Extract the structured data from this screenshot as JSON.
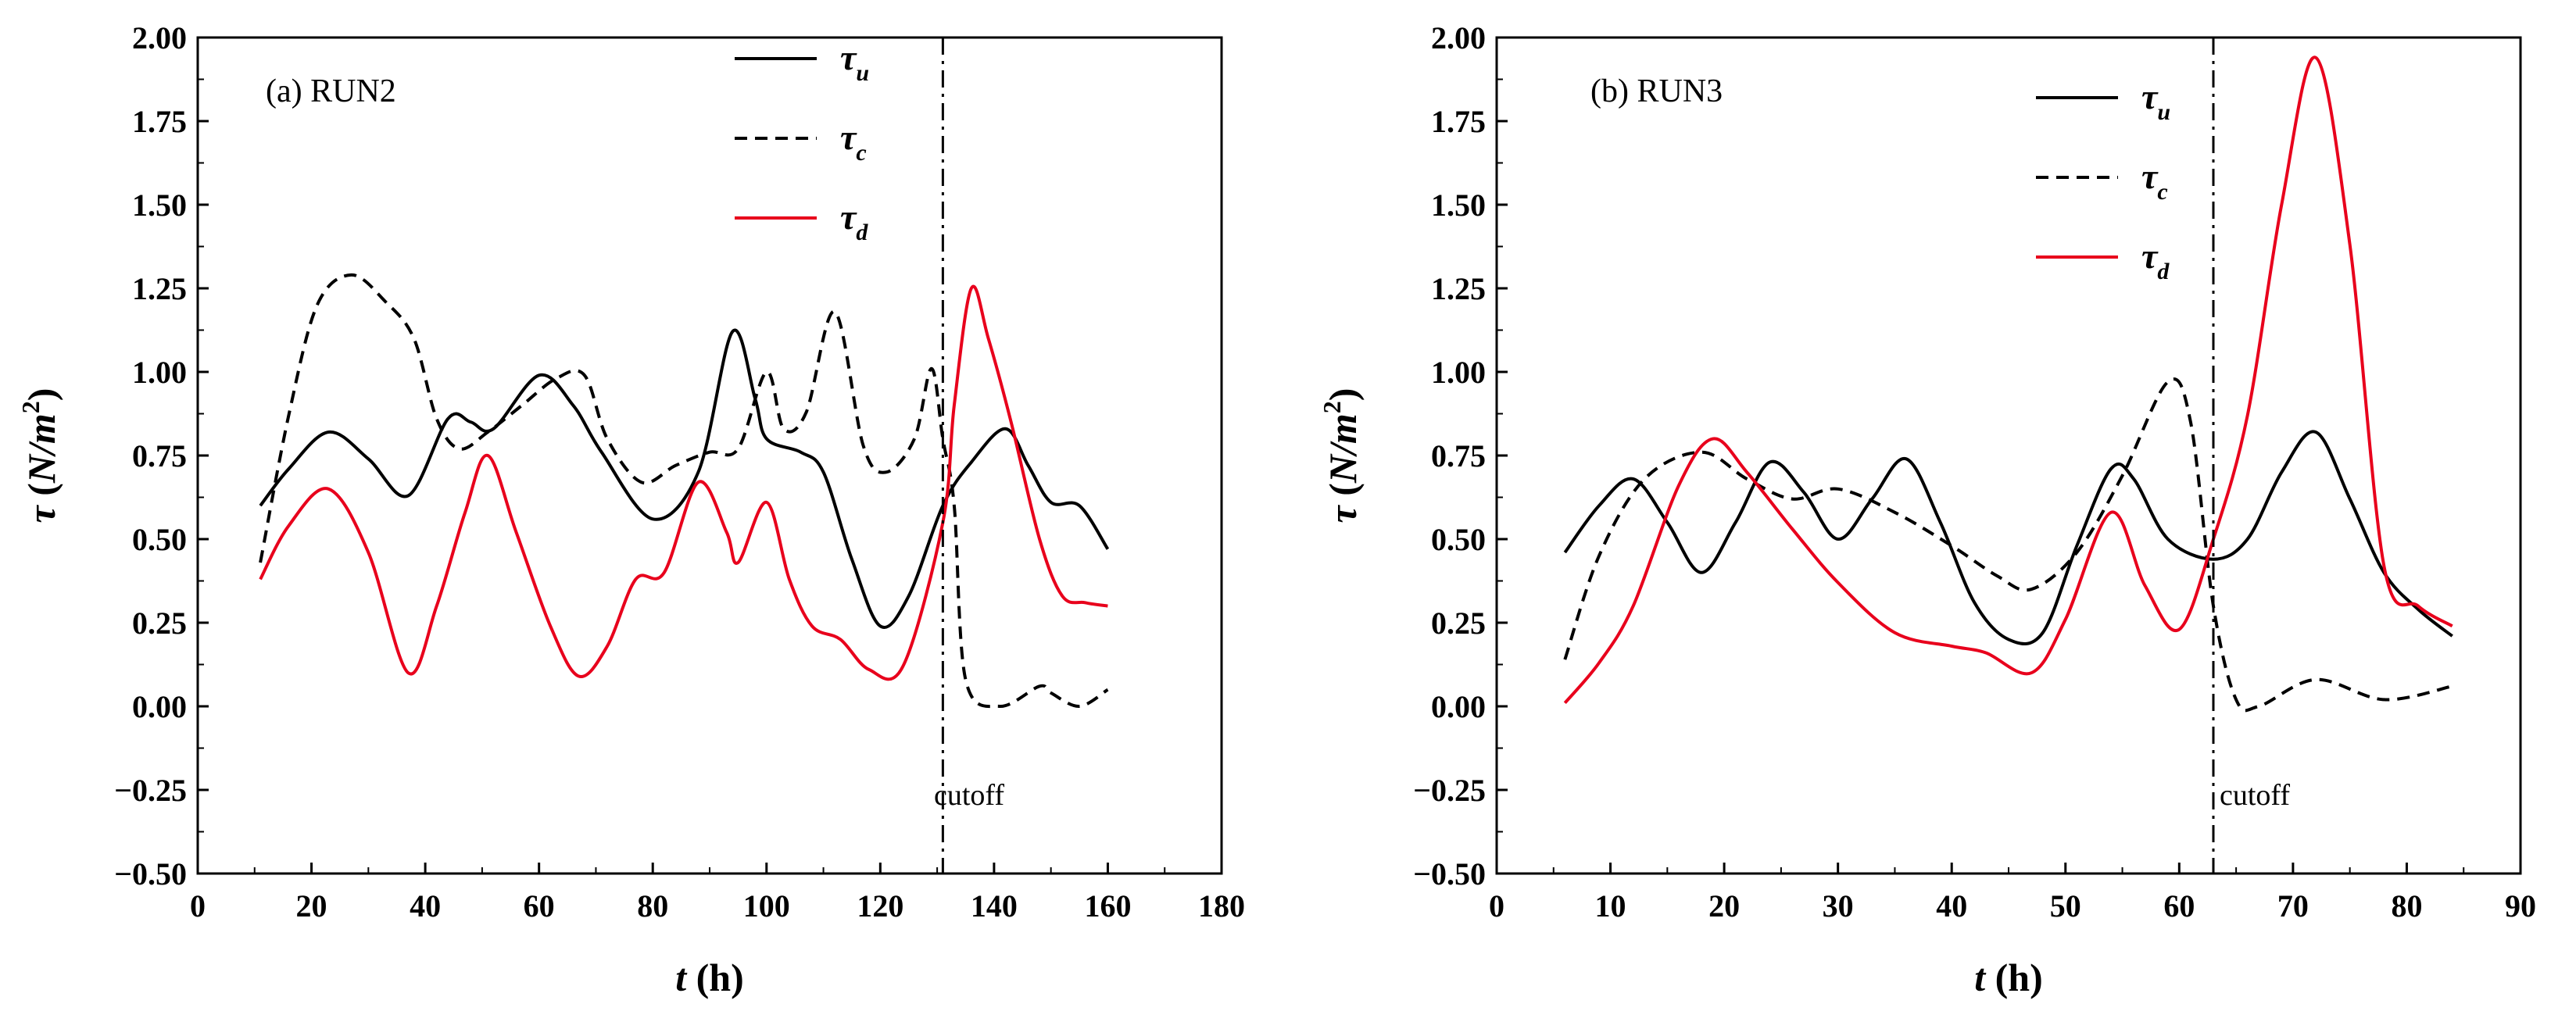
{
  "chart_data": [
    {
      "type": "line",
      "title": "(a) RUN2",
      "xlabel": "t (h)",
      "xlabel_var": "t",
      "xlabel_unit": "(h)",
      "ylabel": "τ (N/m2)",
      "xlim": [
        0,
        180
      ],
      "ylim": [
        -0.5,
        2.0
      ],
      "xticks": [
        0,
        20,
        40,
        60,
        80,
        100,
        120,
        140,
        160,
        180
      ],
      "yticks": [
        -0.5,
        -0.25,
        0,
        0.25,
        0.5,
        0.75,
        1.0,
        1.25,
        1.5,
        1.75,
        2.0
      ],
      "ytick_labels": [
        "−0.50",
        "−0.25",
        "0.00",
        "0.25",
        "0.50",
        "0.75",
        "1.00",
        "1.25",
        "1.50",
        "1.75",
        "2.00"
      ],
      "cutoff": {
        "x": 131,
        "label": "cutoff"
      },
      "legend_position": "top-center",
      "series": [
        {
          "name": "τu",
          "symbol": "τ",
          "sub": "u",
          "style": "solid",
          "color": "#000000",
          "points": [
            [
              11,
              0.6
            ],
            [
              16,
              0.71
            ],
            [
              23,
              0.82
            ],
            [
              30,
              0.74
            ],
            [
              37,
              0.63
            ],
            [
              44,
              0.86
            ],
            [
              48,
              0.85
            ],
            [
              52,
              0.83
            ],
            [
              60,
              0.99
            ],
            [
              66,
              0.9
            ],
            [
              71,
              0.76
            ],
            [
              80,
              0.56
            ],
            [
              88,
              0.7
            ],
            [
              94,
              1.12
            ],
            [
              98,
              0.92
            ],
            [
              100,
              0.8
            ],
            [
              106,
              0.76
            ],
            [
              110,
              0.7
            ],
            [
              115,
              0.44
            ],
            [
              120,
              0.24
            ],
            [
              125,
              0.33
            ],
            [
              131,
              0.6
            ],
            [
              136,
              0.73
            ],
            [
              142,
              0.83
            ],
            [
              146,
              0.72
            ],
            [
              150,
              0.61
            ],
            [
              155,
              0.6
            ],
            [
              160,
              0.47
            ]
          ]
        },
        {
          "name": "τc",
          "symbol": "τ",
          "sub": "c",
          "style": "dashed",
          "color": "#000000",
          "points": [
            [
              11,
              0.43
            ],
            [
              16,
              0.87
            ],
            [
              21,
              1.2
            ],
            [
              27,
              1.29
            ],
            [
              33,
              1.21
            ],
            [
              38,
              1.1
            ],
            [
              42,
              0.86
            ],
            [
              46,
              0.77
            ],
            [
              51,
              0.82
            ],
            [
              57,
              0.9
            ],
            [
              63,
              0.98
            ],
            [
              68,
              0.99
            ],
            [
              72,
              0.8
            ],
            [
              78,
              0.67
            ],
            [
              84,
              0.72
            ],
            [
              90,
              0.76
            ],
            [
              95,
              0.77
            ],
            [
              100,
              1.0
            ],
            [
              103,
              0.83
            ],
            [
              107,
              0.88
            ],
            [
              112,
              1.18
            ],
            [
              117,
              0.78
            ],
            [
              121,
              0.7
            ],
            [
              126,
              0.8
            ],
            [
              129,
              1.01
            ],
            [
              131,
              0.8
            ],
            [
              133,
              0.6
            ],
            [
              135,
              0.08
            ],
            [
              141,
              0.0
            ],
            [
              148,
              0.06
            ],
            [
              150,
              0.04
            ],
            [
              155,
              0.0
            ],
            [
              160,
              0.05
            ]
          ]
        },
        {
          "name": "τd",
          "symbol": "τ",
          "sub": "d",
          "style": "solid",
          "color": "#e8001c",
          "points": [
            [
              11,
              0.38
            ],
            [
              16,
              0.54
            ],
            [
              23,
              0.65
            ],
            [
              30,
              0.46
            ],
            [
              37,
              0.1
            ],
            [
              42,
              0.3
            ],
            [
              47,
              0.58
            ],
            [
              51,
              0.75
            ],
            [
              56,
              0.52
            ],
            [
              62,
              0.24
            ],
            [
              67,
              0.09
            ],
            [
              72,
              0.18
            ],
            [
              77,
              0.38
            ],
            [
              82,
              0.4
            ],
            [
              88,
              0.67
            ],
            [
              93,
              0.52
            ],
            [
              95,
              0.43
            ],
            [
              100,
              0.61
            ],
            [
              104,
              0.38
            ],
            [
              108,
              0.24
            ],
            [
              113,
              0.2
            ],
            [
              118,
              0.11
            ],
            [
              124,
              0.12
            ],
            [
              131,
              0.55
            ],
            [
              133,
              0.9
            ],
            [
              136,
              1.25
            ],
            [
              139,
              1.1
            ],
            [
              143,
              0.85
            ],
            [
              148,
              0.5
            ],
            [
              152,
              0.33
            ],
            [
              156,
              0.31
            ],
            [
              160,
              0.3
            ]
          ]
        }
      ]
    },
    {
      "type": "line",
      "title": "(b) RUN3",
      "xlabel": "t (h)",
      "xlabel_var": "t",
      "xlabel_unit": "(h)",
      "ylabel": "τ (N/m2)",
      "xlim": [
        0,
        90
      ],
      "ylim": [
        -0.5,
        2.0
      ],
      "xticks": [
        0,
        10,
        20,
        30,
        40,
        50,
        60,
        70,
        80,
        90
      ],
      "yticks": [
        -0.5,
        -0.25,
        0,
        0.25,
        0.5,
        0.75,
        1.0,
        1.25,
        1.5,
        1.75,
        2.0
      ],
      "ytick_labels": [
        "−0.50",
        "−0.25",
        "0.00",
        "0.25",
        "0.50",
        "0.75",
        "1.00",
        "1.25",
        "1.50",
        "1.75",
        "2.00"
      ],
      "cutoff": {
        "x": 63,
        "label": "cutoff"
      },
      "legend_position": "top-right",
      "series": [
        {
          "name": "τu",
          "symbol": "τ",
          "sub": "u",
          "style": "solid",
          "color": "#000000",
          "points": [
            [
              6,
              0.46
            ],
            [
              9,
              0.6
            ],
            [
              12,
              0.68
            ],
            [
              15,
              0.55
            ],
            [
              18,
              0.4
            ],
            [
              21,
              0.55
            ],
            [
              24,
              0.73
            ],
            [
              27,
              0.64
            ],
            [
              30,
              0.5
            ],
            [
              33,
              0.62
            ],
            [
              36,
              0.74
            ],
            [
              39,
              0.55
            ],
            [
              42,
              0.31
            ],
            [
              45,
              0.2
            ],
            [
              48,
              0.22
            ],
            [
              51,
              0.48
            ],
            [
              54,
              0.71
            ],
            [
              56,
              0.68
            ],
            [
              59,
              0.5
            ],
            [
              63,
              0.44
            ],
            [
              66,
              0.5
            ],
            [
              69,
              0.7
            ],
            [
              72,
              0.82
            ],
            [
              75,
              0.62
            ],
            [
              78,
              0.4
            ],
            [
              81,
              0.29
            ],
            [
              84,
              0.21
            ]
          ]
        },
        {
          "name": "τc",
          "symbol": "τ",
          "sub": "c",
          "style": "dashed",
          "color": "#000000",
          "points": [
            [
              6,
              0.14
            ],
            [
              9,
              0.45
            ],
            [
              13,
              0.68
            ],
            [
              18,
              0.76
            ],
            [
              22,
              0.68
            ],
            [
              26,
              0.62
            ],
            [
              30,
              0.65
            ],
            [
              35,
              0.58
            ],
            [
              40,
              0.48
            ],
            [
              44,
              0.39
            ],
            [
              47,
              0.35
            ],
            [
              51,
              0.46
            ],
            [
              55,
              0.69
            ],
            [
              59,
              0.97
            ],
            [
              61,
              0.85
            ],
            [
              63,
              0.3
            ],
            [
              65,
              0.02
            ],
            [
              67,
              0.0
            ],
            [
              72,
              0.08
            ],
            [
              78,
              0.02
            ],
            [
              84,
              0.06
            ]
          ]
        },
        {
          "name": "τd",
          "symbol": "τ",
          "sub": "d",
          "style": "solid",
          "color": "#e8001c",
          "points": [
            [
              6,
              0.01
            ],
            [
              9,
              0.13
            ],
            [
              12,
              0.3
            ],
            [
              16,
              0.66
            ],
            [
              19,
              0.8
            ],
            [
              22,
              0.7
            ],
            [
              26,
              0.53
            ],
            [
              30,
              0.37
            ],
            [
              35,
              0.22
            ],
            [
              40,
              0.18
            ],
            [
              43,
              0.16
            ],
            [
              47,
              0.1
            ],
            [
              50,
              0.26
            ],
            [
              54,
              0.58
            ],
            [
              57,
              0.36
            ],
            [
              60,
              0.23
            ],
            [
              63,
              0.5
            ],
            [
              66,
              0.87
            ],
            [
              69,
              1.5
            ],
            [
              72,
              1.94
            ],
            [
              75,
              1.38
            ],
            [
              78,
              0.42
            ],
            [
              81,
              0.3
            ],
            [
              84,
              0.24
            ]
          ]
        }
      ]
    }
  ]
}
